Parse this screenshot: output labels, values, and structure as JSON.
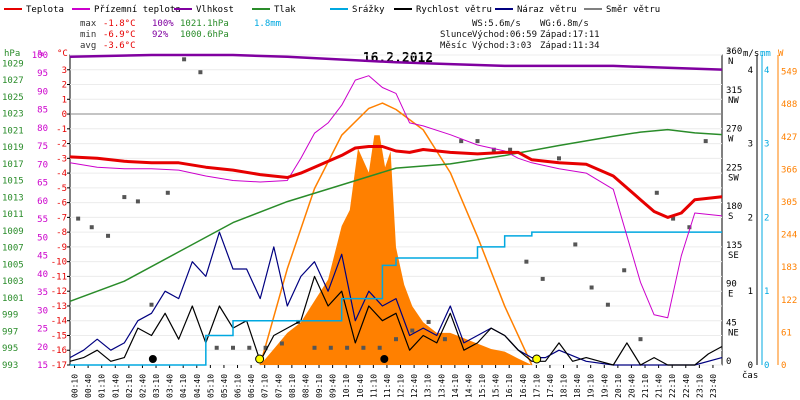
{
  "chart_data": {
    "type": "line",
    "title": "16.2.2012",
    "legend": [
      {
        "key": "teplota",
        "label": "Teplota",
        "color": "#e60000"
      },
      {
        "key": "pocitova",
        "label": "Přízemní teplota",
        "color": "#cc00cc"
      },
      {
        "key": "vlhkost",
        "label": "Vlhkost",
        "color": "#8000a0"
      },
      {
        "key": "tlak",
        "label": "Tlak",
        "color": "#2a8c2a"
      },
      {
        "key": "srazky",
        "label": "Srážky",
        "color": "#00a8e0"
      },
      {
        "key": "rychlost",
        "label": "Rychlost větru",
        "color": "#000000"
      },
      {
        "key": "naraz",
        "label": "Náraz větru",
        "color": "#000080"
      },
      {
        "key": "smer",
        "label": "Směr větru",
        "color": "#808080"
      }
    ],
    "stats": {
      "max": {
        "label": "max",
        "temp": "-1.8°C",
        "hum": "100%",
        "pres": "1021.1hPa",
        "rain": "1.8mm"
      },
      "min": {
        "label": "min",
        "temp": "-6.9°C",
        "hum": "92%",
        "pres": "1000.6hPa"
      },
      "avg": {
        "label": "avg",
        "temp": "-3.6°C"
      }
    },
    "wind_text": {
      "ws": "WS:5.6m/s",
      "wg": "WG:6.8m/s"
    },
    "sun_text": {
      "label": "Slunce",
      "rise": "Východ:06:59",
      "set": "Západ:17:11"
    },
    "moon_text": {
      "label": "Měsíc",
      "rise": "Východ:3:03",
      "set": "Západ:11:34"
    },
    "x_axis_label": "čas",
    "x_ticks": [
      "00:10",
      "00:40",
      "01:10",
      "01:40",
      "02:10",
      "02:40",
      "03:10",
      "03:40",
      "04:10",
      "04:40",
      "05:10",
      "05:40",
      "06:10",
      "06:40",
      "07:10",
      "07:40",
      "08:10",
      "08:40",
      "09:10",
      "09:40",
      "10:10",
      "10:40",
      "11:10",
      "11:40",
      "12:10",
      "12:40",
      "13:10",
      "13:40",
      "14:10",
      "14:40",
      "15:10",
      "15:40",
      "16:10",
      "16:40",
      "17:10",
      "17:40",
      "18:10",
      "18:40",
      "19:10",
      "19:40",
      "20:10",
      "20:40",
      "21:10",
      "21:40",
      "22:10",
      "22:40",
      "23:10",
      "23:40"
    ],
    "axes": {
      "hpa": {
        "title": "hPa",
        "color": "#2a8c2a",
        "ticks": [
          "1029",
          "1027",
          "1025",
          "1023",
          "1021",
          "1019",
          "1017",
          "1015",
          "1013",
          "1011",
          "1009",
          "1007",
          "1005",
          "1003",
          "1001",
          "999",
          "997",
          "995",
          "993"
        ]
      },
      "pct": {
        "title": "%",
        "color": "#cc00cc",
        "ticks": [
          "100",
          "95",
          "90",
          "85",
          "80",
          "75",
          "70",
          "65",
          "60",
          "55",
          "50",
          "45",
          "40",
          "35",
          "30",
          "25",
          "20",
          "15"
        ]
      },
      "degc": {
        "title": "°C",
        "color": "#e60000",
        "ticks": [
          "3",
          "2",
          "1",
          "0",
          "-1",
          "-2",
          "-3",
          "-4",
          "-5",
          "-6",
          "-7",
          "-8",
          "-9",
          "-10",
          "-11",
          "-12",
          "-13",
          "-14",
          "-15",
          "-16",
          "-17"
        ]
      },
      "dir": {
        "title": "°",
        "color": "#000000",
        "ticks": [
          {
            "v": "360",
            "d": "N"
          },
          {
            "v": "315",
            "d": "NW"
          },
          {
            "v": "270",
            "d": "W"
          },
          {
            "v": "225",
            "d": "SW"
          },
          {
            "v": "180",
            "d": "S"
          },
          {
            "v": "135",
            "d": "SE"
          },
          {
            "v": "90",
            "d": "E"
          },
          {
            "v": "45",
            "d": "NE"
          },
          {
            "v": "0",
            "d": ""
          }
        ]
      },
      "ms": {
        "title": "m/s",
        "color": "#000000",
        "ticks": [
          "4",
          "3",
          "2",
          "1",
          "0"
        ]
      },
      "mm": {
        "title": "mm",
        "color": "#00a8e0",
        "ticks": [
          "4",
          "3",
          "2",
          "1",
          "0"
        ]
      },
      "w": {
        "title": "W",
        "color": "#ff8000",
        "ticks": [
          "549",
          "488",
          "427",
          "366",
          "305",
          "244",
          "183",
          "122",
          "61",
          "0"
        ]
      }
    },
    "series": {
      "teplota": {
        "x": [
          0,
          1,
          2,
          3,
          4,
          5,
          6,
          7,
          8,
          8.5,
          9,
          10,
          10.5,
          11,
          11.5,
          12,
          12.5,
          13,
          14,
          15,
          16,
          16.5,
          17,
          18,
          19,
          20,
          21,
          21.5,
          22,
          22.5,
          23,
          24
        ],
        "y": [
          -2.9,
          -3.0,
          -3.2,
          -3.3,
          -3.3,
          -3.6,
          -3.8,
          -4.1,
          -4.3,
          -4.0,
          -3.6,
          -2.8,
          -2.3,
          -2.2,
          -2.2,
          -2.5,
          -2.6,
          -2.4,
          -2.6,
          -2.7,
          -2.6,
          -2.6,
          -3.1,
          -3.3,
          -3.4,
          -4.2,
          -5.8,
          -6.6,
          -7.0,
          -6.7,
          -5.8,
          -5.6
        ]
      },
      "pocitova": {
        "x": [
          0,
          1,
          2,
          3,
          4,
          5,
          6,
          7,
          8,
          8.5,
          9,
          9.5,
          10,
          10.5,
          11,
          11.5,
          12,
          12.5,
          13,
          14,
          15,
          16,
          16.5,
          17,
          18,
          19,
          20,
          21,
          21.5,
          22,
          22.5,
          23,
          24
        ],
        "y": [
          -3.3,
          -3.6,
          -3.7,
          -3.7,
          -3.8,
          -4.2,
          -4.5,
          -4.6,
          -4.5,
          -3.0,
          -1.3,
          -0.6,
          0.6,
          2.3,
          2.6,
          1.8,
          1.4,
          -0.6,
          -0.8,
          -1.4,
          -2.1,
          -2.5,
          -3.0,
          -3.3,
          -3.7,
          -4.0,
          -5.1,
          -11.4,
          -13.6,
          -13.8,
          -9.6,
          -6.7,
          -6.9
        ]
      },
      "vlhkost": {
        "x": [
          0,
          3,
          6,
          8,
          12,
          14,
          16,
          18,
          20,
          22,
          24
        ],
        "y": [
          99.5,
          100,
          100,
          99.5,
          98.0,
          97.5,
          97.0,
          97.0,
          97.0,
          96.5,
          96.0
        ]
      },
      "tlak": {
        "x": [
          0,
          2,
          4,
          6,
          8,
          10,
          12,
          14,
          16,
          18,
          20,
          21,
          22,
          23,
          24
        ],
        "y": [
          1000.6,
          1003,
          1006.5,
          1010,
          1012.5,
          1014.5,
          1016.5,
          1017,
          1018,
          1019.2,
          1020.3,
          1020.8,
          1021.1,
          1020.7,
          1020.5
        ]
      },
      "srazky": {
        "x": [
          0,
          3,
          5,
          6,
          7,
          9,
          10,
          11.5,
          12,
          14,
          15,
          16,
          17,
          19,
          24
        ],
        "y": [
          0,
          0,
          0.4,
          0.6,
          0.6,
          0.6,
          0.9,
          1.35,
          1.45,
          1.45,
          1.6,
          1.75,
          1.8,
          1.8,
          1.8
        ]
      },
      "radiace": {
        "x": [
          7.0,
          7.5,
          8,
          8.5,
          9,
          9.5,
          10,
          10.3,
          10.6,
          11,
          11.2,
          11.4,
          11.6,
          11.8,
          12,
          12.3,
          12.6,
          13,
          13.5,
          14,
          14.5,
          15,
          15.5,
          16,
          16.5,
          17
        ],
        "y": [
          0,
          30,
          60,
          80,
          120,
          160,
          260,
          290,
          405,
          360,
          430,
          430,
          370,
          400,
          220,
          150,
          110,
          80,
          60,
          60,
          50,
          40,
          30,
          25,
          12,
          0
        ]
      },
      "radiace_max": {
        "x": [
          7,
          8,
          9,
          10,
          11,
          11.5,
          12,
          13,
          14,
          15,
          16,
          17
        ],
        "y": [
          0,
          180,
          330,
          430,
          480,
          490,
          478,
          440,
          360,
          240,
          110,
          0
        ]
      },
      "rychlost": {
        "x": [
          0,
          0.5,
          1,
          1.5,
          2,
          2.5,
          3,
          3.5,
          4,
          4.5,
          5,
          5.5,
          6,
          6.5,
          7,
          7.5,
          8,
          8.5,
          9,
          9.5,
          10,
          10.5,
          11,
          11.5,
          12,
          12.5,
          13,
          13.5,
          14,
          14.5,
          15,
          15.5,
          16,
          16.5,
          17,
          17.5,
          18,
          18.5,
          19,
          19.5,
          20,
          20.5,
          21,
          21.5,
          22,
          22.5,
          23,
          23.5,
          24
        ],
        "y": [
          0.05,
          0.1,
          0.2,
          0.05,
          0.1,
          0.5,
          0.4,
          0.7,
          0.35,
          0.8,
          0.3,
          0.8,
          0.5,
          0.6,
          0.05,
          0.4,
          0.5,
          0.6,
          1.2,
          0.8,
          1.0,
          0.3,
          0.8,
          0.6,
          0.7,
          0.2,
          0.4,
          0.3,
          0.7,
          0.2,
          0.3,
          0.5,
          0.4,
          0.2,
          0.05,
          0.05,
          0.3,
          0.05,
          0.1,
          0.05,
          0.0,
          0.3,
          0.0,
          0.1,
          0.0,
          0.0,
          0.0,
          0.15,
          0.25
        ]
      },
      "naraz": {
        "x": [
          0,
          0.5,
          1,
          1.5,
          2,
          2.5,
          3,
          3.5,
          4,
          4.5,
          5,
          5.5,
          6,
          6.5,
          7,
          7.5,
          8,
          8.5,
          9,
          9.5,
          10,
          10.5,
          11,
          11.5,
          12,
          12.5,
          13,
          13.5,
          14,
          14.5,
          15,
          15.5,
          16,
          16.5,
          17,
          17.5,
          18,
          19,
          20,
          21,
          22,
          23,
          24
        ],
        "y": [
          0.1,
          0.2,
          0.35,
          0.2,
          0.3,
          0.6,
          0.7,
          1.0,
          0.9,
          1.4,
          1.2,
          1.8,
          1.3,
          1.3,
          0.9,
          1.6,
          0.8,
          1.2,
          1.4,
          1.0,
          1.5,
          0.6,
          1.0,
          0.8,
          0.9,
          0.4,
          0.5,
          0.4,
          0.8,
          0.3,
          0.4,
          0.5,
          0.4,
          0.2,
          0.1,
          0.1,
          0.2,
          0.05,
          0.0,
          0.0,
          0.0,
          0.0,
          0.1
        ]
      },
      "smer": {
        "x": [
          0.3,
          0.8,
          1.4,
          2.0,
          2.5,
          3.0,
          3.6,
          4.2,
          4.8,
          5.4,
          6.0,
          6.6,
          7.2,
          7.8,
          8.4,
          9.0,
          9.6,
          10.2,
          10.8,
          11.4,
          12.0,
          12.6,
          13.2,
          13.8,
          14.4,
          15.0,
          15.6,
          16.2,
          16.8,
          17.4,
          18.0,
          18.6,
          19.2,
          19.8,
          20.4,
          21.0,
          21.6,
          22.2,
          22.8,
          23.4
        ],
        "y": [
          170,
          160,
          150,
          195,
          190,
          70,
          200,
          355,
          340,
          20,
          20,
          20,
          20,
          25,
          50,
          20,
          20,
          20,
          20,
          20,
          30,
          40,
          50,
          30,
          260,
          260,
          250,
          250,
          120,
          100,
          240,
          140,
          90,
          70,
          110,
          30,
          200,
          170,
          160,
          260
        ]
      }
    },
    "markers": {
      "sun": [
        {
          "h": 6.98,
          "type": "rise"
        },
        {
          "h": 17.18,
          "type": "set"
        }
      ],
      "moon": [
        {
          "h": 3.05,
          "type": "rise"
        },
        {
          "h": 11.57,
          "type": "set"
        }
      ]
    },
    "ranges": {
      "temp": [
        -17,
        4
      ],
      "hum": [
        15,
        100
      ],
      "pres": [
        993,
        1030
      ],
      "dir": [
        0,
        360
      ],
      "ms": [
        0,
        4.2
      ],
      "mm": [
        0,
        4.2
      ],
      "w": [
        0,
        580
      ],
      "hours": [
        0,
        24
      ]
    }
  }
}
